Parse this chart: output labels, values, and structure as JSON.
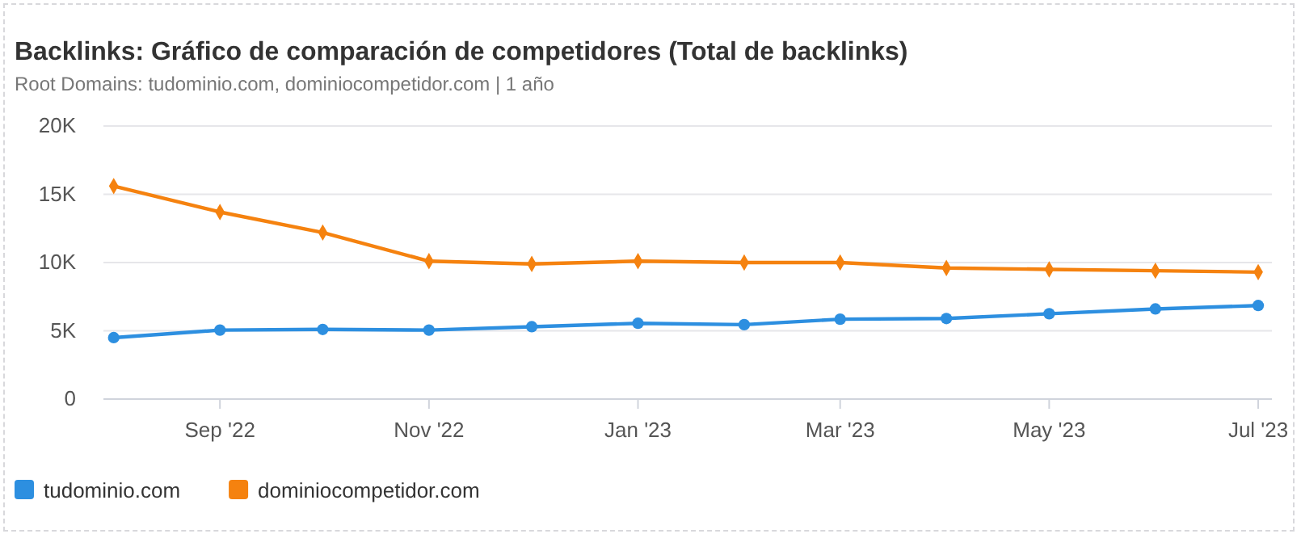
{
  "chart_data": {
    "type": "line",
    "title": "Backlinks: Gráfico de comparación de competidores (Total de backlinks)",
    "subtitle": "Root Domains: tudominio.com, dominiocompetidor.com | 1 año",
    "x": [
      "2022-08-01",
      "2022-09-01",
      "2022-10-01",
      "2022-11-01",
      "2022-12-01",
      "2023-01-01",
      "2023-02-01",
      "2023-03-01",
      "2023-04-01",
      "2023-05-01",
      "2023-06-01",
      "2023-07-01"
    ],
    "xlim": [
      "2022-07-29",
      "2023-07-05"
    ],
    "xticks": [
      {
        "value": "2022-09-01",
        "label": "Sep '22"
      },
      {
        "value": "2022-11-01",
        "label": "Nov '22"
      },
      {
        "value": "2023-01-01",
        "label": "Jan '23"
      },
      {
        "value": "2023-03-01",
        "label": "Mar '23"
      },
      {
        "value": "2023-05-01",
        "label": "May '23"
      },
      {
        "value": "2023-07-01",
        "label": "Jul '23"
      }
    ],
    "ylim": [
      0,
      20000
    ],
    "yticks": [
      0,
      {
        "value": 5000,
        "label": "5K"
      },
      {
        "value": 10000,
        "label": "10K"
      },
      {
        "value": 15000,
        "label": "15K"
      },
      {
        "value": 20000,
        "label": "20K"
      }
    ],
    "grid": "y",
    "legend": "bottom",
    "line_style": "solid",
    "series": [
      {
        "name": "tudominio.com",
        "color": "#2d8fe0",
        "marker": "circle",
        "values": [
          4500,
          5050,
          5100,
          5050,
          5300,
          5550,
          5450,
          5850,
          5900,
          6250,
          6600,
          6850
        ]
      },
      {
        "name": "dominiocompetidor.com",
        "color": "#f5820f",
        "marker": "diamond",
        "values": [
          15600,
          13700,
          12200,
          10100,
          9900,
          10100,
          10000,
          10000,
          9600,
          9500,
          9400,
          9300
        ]
      }
    ]
  }
}
